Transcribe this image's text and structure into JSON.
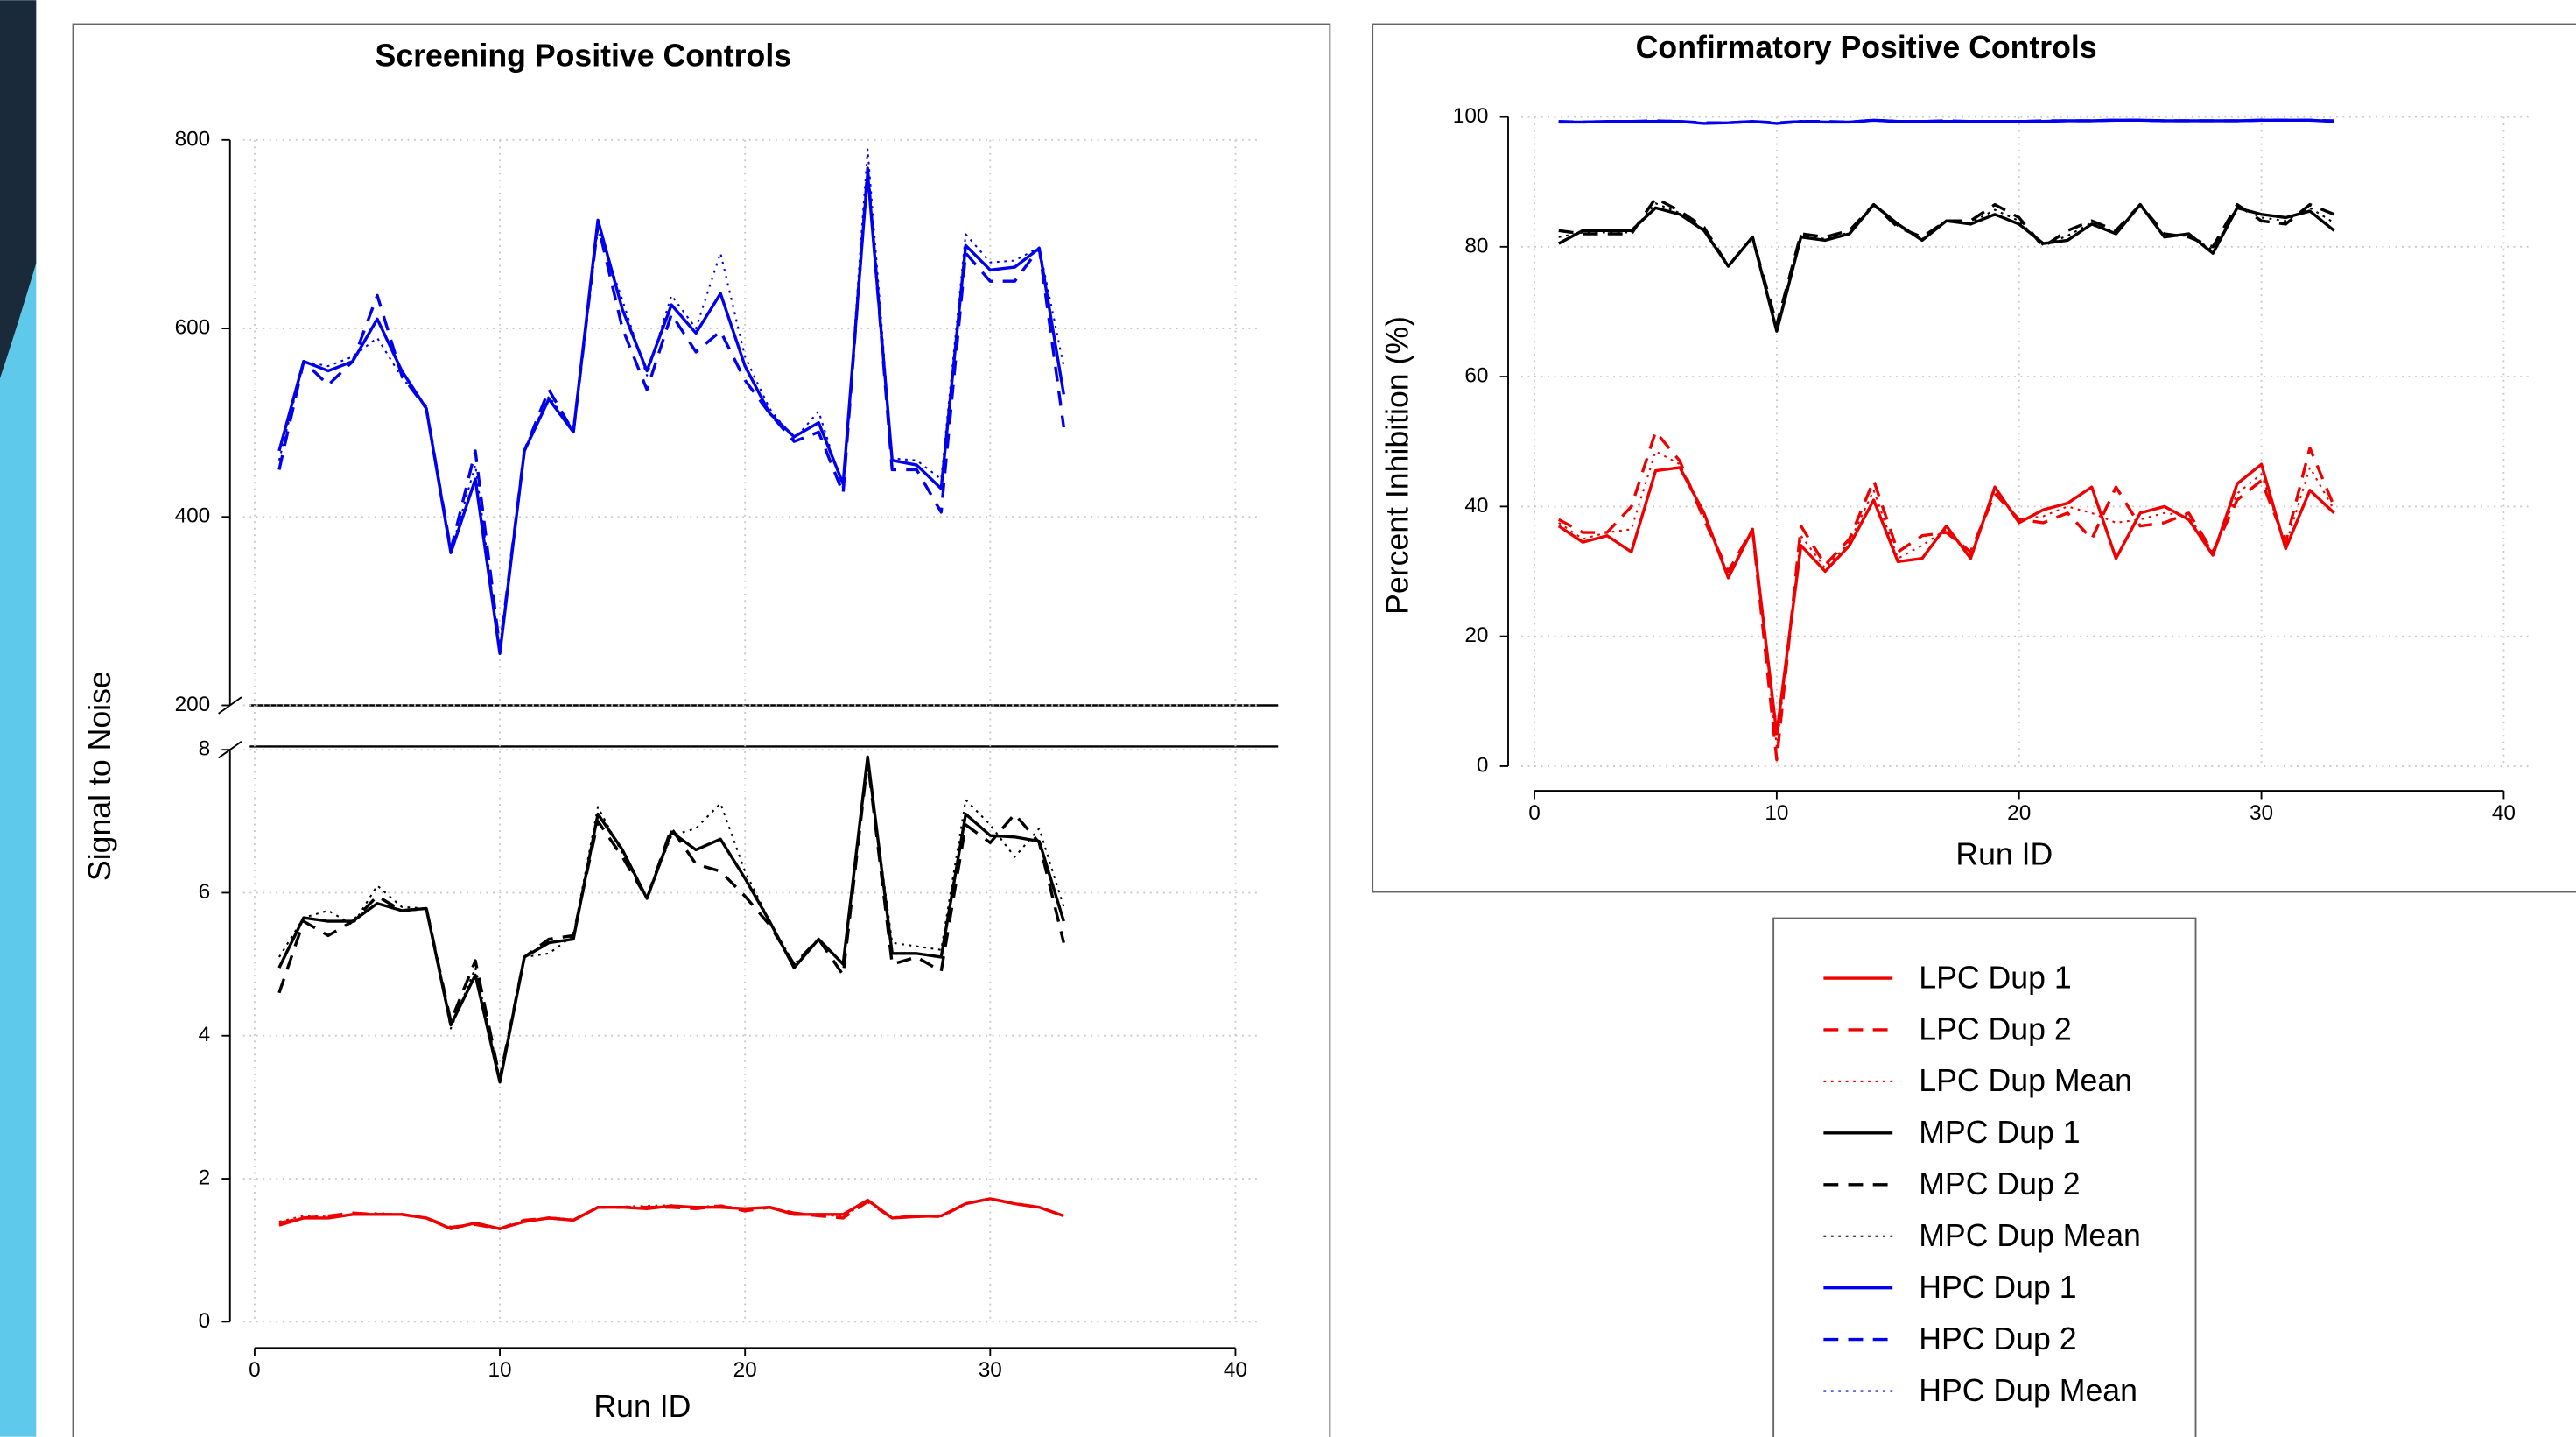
{
  "chart_data": [
    {
      "type": "line",
      "title": "Screening Positive Controls",
      "xlabel": "Run ID",
      "ylabel": "Signal to Noise",
      "x": [
        1,
        2,
        3,
        4,
        5,
        6,
        7,
        8,
        9,
        10,
        11,
        12,
        13,
        14,
        15,
        16,
        17,
        18,
        19,
        20,
        21,
        22,
        23,
        24,
        25,
        26,
        27,
        28,
        29,
        30,
        31,
        32,
        33
      ],
      "xlim": [
        0,
        40
      ],
      "xticks": [
        0,
        10,
        20,
        30,
        40
      ],
      "grid": true,
      "panels": [
        {
          "ylim": [
            200,
            800
          ],
          "yticks": [
            200,
            400,
            600,
            800
          ],
          "series": [
            {
              "name": "HPC Dup 1",
              "color": "#0000ee",
              "dash": "solid",
              "values": [
                470,
                565,
                555,
                565,
                610,
                555,
                515,
                362,
                440,
                255,
                470,
                525,
                490,
                715,
                620,
                555,
                625,
                595,
                637,
                560,
                510,
                485,
                500,
                435,
                765,
                460,
                455,
                430,
                688,
                662,
                665,
                685,
                530
              ]
            },
            {
              "name": "HPC Dup 2",
              "color": "#0000ee",
              "dash": "dashed",
              "values": [
                450,
                565,
                540,
                565,
                635,
                550,
                515,
                365,
                470,
                260,
                470,
                535,
                490,
                710,
                600,
                535,
                615,
                575,
                597,
                545,
                510,
                480,
                490,
                425,
                770,
                450,
                450,
                405,
                680,
                650,
                650,
                685,
                495
              ]
            },
            {
              "name": "HPC Dup Mean",
              "color": "#0000ee",
              "dash": "dotted",
              "values": [
                460,
                565,
                560,
                570,
                590,
                548,
                518,
                363,
                455,
                257,
                472,
                528,
                492,
                705,
                630,
                550,
                635,
                600,
                680,
                570,
                515,
                482,
                512,
                430,
                790,
                462,
                460,
                440,
                700,
                670,
                672,
                686,
                560
              ]
            }
          ]
        },
        {
          "ylim": [
            0,
            8
          ],
          "yticks": [
            0,
            2,
            4,
            6,
            8
          ],
          "series": [
            {
              "name": "LPC Dup 1",
              "color": "#ee0000",
              "dash": "solid",
              "values": [
                1.35,
                1.45,
                1.45,
                1.5,
                1.5,
                1.5,
                1.45,
                1.3,
                1.38,
                1.3,
                1.4,
                1.45,
                1.42,
                1.6,
                1.6,
                1.58,
                1.62,
                1.6,
                1.6,
                1.58,
                1.6,
                1.5,
                1.5,
                1.5,
                1.7,
                1.45,
                1.47,
                1.48,
                1.65,
                1.72,
                1.65,
                1.6,
                1.48
              ]
            },
            {
              "name": "LPC Dup 2",
              "color": "#ee0000",
              "dash": "dashed",
              "values": [
                1.38,
                1.45,
                1.48,
                1.52,
                1.5,
                1.5,
                1.45,
                1.32,
                1.36,
                1.3,
                1.42,
                1.45,
                1.42,
                1.6,
                1.6,
                1.6,
                1.6,
                1.58,
                1.62,
                1.55,
                1.6,
                1.52,
                1.48,
                1.45,
                1.68,
                1.45,
                1.48,
                1.47,
                1.65,
                1.72,
                1.65,
                1.6,
                1.48
              ]
            },
            {
              "name": "LPC Dup Mean",
              "color": "#ee0000",
              "dash": "dotted",
              "values": [
                1.4,
                1.48,
                1.47,
                1.5,
                1.52,
                1.5,
                1.45,
                1.31,
                1.37,
                1.3,
                1.41,
                1.46,
                1.43,
                1.6,
                1.61,
                1.62,
                1.63,
                1.6,
                1.63,
                1.57,
                1.6,
                1.52,
                1.5,
                1.47,
                1.69,
                1.46,
                1.48,
                1.48,
                1.66,
                1.72,
                1.65,
                1.6,
                1.48
              ]
            },
            {
              "name": "MPC Dup 1",
              "color": "#000000",
              "dash": "solid",
              "values": [
                4.95,
                5.65,
                5.6,
                5.6,
                5.85,
                5.75,
                5.78,
                4.15,
                4.85,
                3.35,
                5.1,
                5.3,
                5.35,
                7.1,
                6.6,
                5.92,
                6.85,
                6.6,
                6.75,
                6.2,
                5.6,
                4.95,
                5.35,
                5.0,
                7.9,
                5.15,
                5.15,
                5.1,
                7.1,
                6.8,
                6.78,
                6.72,
                5.6
              ]
            },
            {
              "name": "MPC Dup 2",
              "color": "#000000",
              "dash": "dashed",
              "values": [
                4.6,
                5.6,
                5.4,
                5.6,
                5.95,
                5.75,
                5.78,
                4.2,
                5.05,
                3.4,
                5.1,
                5.35,
                5.4,
                7.0,
                6.5,
                5.92,
                6.9,
                6.4,
                6.3,
                5.95,
                5.55,
                5.0,
                5.35,
                4.85,
                7.85,
                5.0,
                5.1,
                4.9,
                6.95,
                6.7,
                7.1,
                6.7,
                5.3
              ]
            },
            {
              "name": "MPC Dup Mean",
              "color": "#000000",
              "dash": "dotted",
              "values": [
                5.1,
                5.65,
                5.75,
                5.55,
                6.1,
                5.8,
                5.78,
                4.1,
                4.95,
                3.4,
                5.1,
                5.15,
                5.4,
                7.2,
                6.55,
                5.92,
                6.8,
                6.9,
                7.25,
                6.3,
                5.6,
                5.0,
                5.35,
                5.0,
                7.85,
                5.3,
                5.25,
                5.2,
                7.3,
                6.95,
                6.5,
                6.9,
                5.8
              ]
            }
          ]
        }
      ]
    },
    {
      "type": "line",
      "title": "Confirmatory Positive Controls",
      "xlabel": "Run ID",
      "ylabel": "Percent Inhibition (%)",
      "x": [
        1,
        2,
        3,
        4,
        5,
        6,
        7,
        8,
        9,
        10,
        11,
        12,
        13,
        14,
        15,
        16,
        17,
        18,
        19,
        20,
        21,
        22,
        23,
        24,
        25,
        26,
        27,
        28,
        29,
        30,
        31,
        32,
        33
      ],
      "xlim": [
        0,
        40
      ],
      "xticks": [
        0,
        10,
        20,
        30,
        40
      ],
      "grid": true,
      "panels": [
        {
          "ylim": [
            0,
            100
          ],
          "yticks": [
            0,
            20,
            40,
            60,
            80,
            100
          ],
          "series": [
            {
              "name": "LPC Dup 1",
              "color": "#ee0000",
              "dash": "solid",
              "values": [
                37,
                34.5,
                35.5,
                33,
                45.5,
                46,
                39,
                29,
                36.5,
                5,
                34,
                30,
                34,
                41,
                31.5,
                32,
                37,
                32,
                43,
                37.5,
                39.5,
                40.5,
                43,
                32,
                39,
                40,
                38,
                32.5,
                43.5,
                46.5,
                33.5,
                42.5,
                39
              ]
            },
            {
              "name": "LPC Dup 2",
              "color": "#ee0000",
              "dash": "dashed",
              "values": [
                38,
                36,
                36,
                40,
                51.5,
                47,
                38,
                30,
                36.5,
                1,
                37,
                31,
                35,
                44,
                33,
                35.5,
                36,
                33,
                42,
                38,
                37.5,
                39,
                35,
                43,
                37,
                37.5,
                39,
                33,
                41,
                44,
                34.5,
                49,
                40
              ]
            },
            {
              "name": "LPC Dup Mean",
              "color": "#ee0000",
              "dash": "dotted",
              "values": [
                37.5,
                35,
                36,
                36.5,
                48.5,
                46.5,
                38.5,
                29.5,
                36.5,
                3,
                35.5,
                30.5,
                34.5,
                42.5,
                32,
                34,
                36.5,
                32.5,
                42.5,
                38,
                38.5,
                40,
                39,
                37.5,
                38,
                39,
                38.5,
                33,
                42,
                45,
                34,
                46,
                39.5
              ]
            },
            {
              "name": "MPC Dup 1",
              "color": "#000000",
              "dash": "solid",
              "values": [
                80.5,
                82.5,
                82.5,
                82.5,
                86,
                85,
                82.5,
                77,
                81.5,
                67,
                81.5,
                81,
                82,
                86.5,
                83.5,
                81,
                84,
                83.5,
                85,
                83.5,
                80.5,
                81,
                83.5,
                82,
                86.5,
                81.5,
                82,
                79,
                86,
                85,
                84.5,
                85.5,
                82.5
              ]
            },
            {
              "name": "MPC Dup 2",
              "color": "#000000",
              "dash": "dashed",
              "values": [
                82.5,
                82,
                82,
                82,
                87.5,
                85.5,
                83,
                77,
                81.5,
                68,
                82,
                81.5,
                82.5,
                86.5,
                83,
                81.5,
                84,
                84,
                86.5,
                84.5,
                80,
                82.5,
                84,
                82.5,
                86.5,
                82,
                81.5,
                80,
                86.5,
                84,
                83.5,
                86.5,
                85
              ]
            },
            {
              "name": "MPC Dup Mean",
              "color": "#000000",
              "dash": "dotted",
              "values": [
                81.5,
                82.2,
                82.2,
                82.2,
                86.7,
                85.2,
                82.7,
                77,
                81.5,
                67.5,
                81.7,
                81.2,
                82.2,
                86.5,
                83.2,
                81.2,
                84,
                83.7,
                85.7,
                84,
                80.2,
                81.7,
                83.7,
                82.2,
                86.5,
                81.7,
                81.7,
                79.5,
                86.2,
                84.5,
                84,
                86,
                83.7
              ]
            },
            {
              "name": "HPC Dup 1",
              "color": "#0000ee",
              "dash": "solid",
              "values": [
                99.2,
                99.2,
                99.3,
                99.3,
                99.3,
                99.3,
                99.0,
                99.1,
                99.3,
                99.0,
                99.3,
                99.2,
                99.2,
                99.5,
                99.3,
                99.3,
                99.3,
                99.3,
                99.3,
                99.3,
                99.3,
                99.4,
                99.4,
                99.5,
                99.5,
                99.4,
                99.4,
                99.4,
                99.4,
                99.5,
                99.5,
                99.5,
                99.3
              ]
            },
            {
              "name": "HPC Dup 2",
              "color": "#0000ee",
              "dash": "dashed",
              "values": [
                99.3,
                99.2,
                99.3,
                99.3,
                99.4,
                99.3,
                99.1,
                99.1,
                99.3,
                99.1,
                99.3,
                99.3,
                99.2,
                99.5,
                99.3,
                99.3,
                99.4,
                99.3,
                99.3,
                99.3,
                99.4,
                99.4,
                99.4,
                99.5,
                99.5,
                99.4,
                99.4,
                99.4,
                99.4,
                99.5,
                99.5,
                99.5,
                99.4
              ]
            },
            {
              "name": "HPC Dup Mean",
              "color": "#0000ee",
              "dash": "dotted",
              "values": [
                99.2,
                99.2,
                99.3,
                99.3,
                99.3,
                99.3,
                99.0,
                99.1,
                99.3,
                99.0,
                99.3,
                99.2,
                99.2,
                99.5,
                99.3,
                99.3,
                99.3,
                99.3,
                99.3,
                99.3,
                99.3,
                99.4,
                99.4,
                99.5,
                99.5,
                99.4,
                99.4,
                99.4,
                99.4,
                99.5,
                99.5,
                99.5,
                99.3
              ]
            }
          ]
        }
      ]
    }
  ]
}
